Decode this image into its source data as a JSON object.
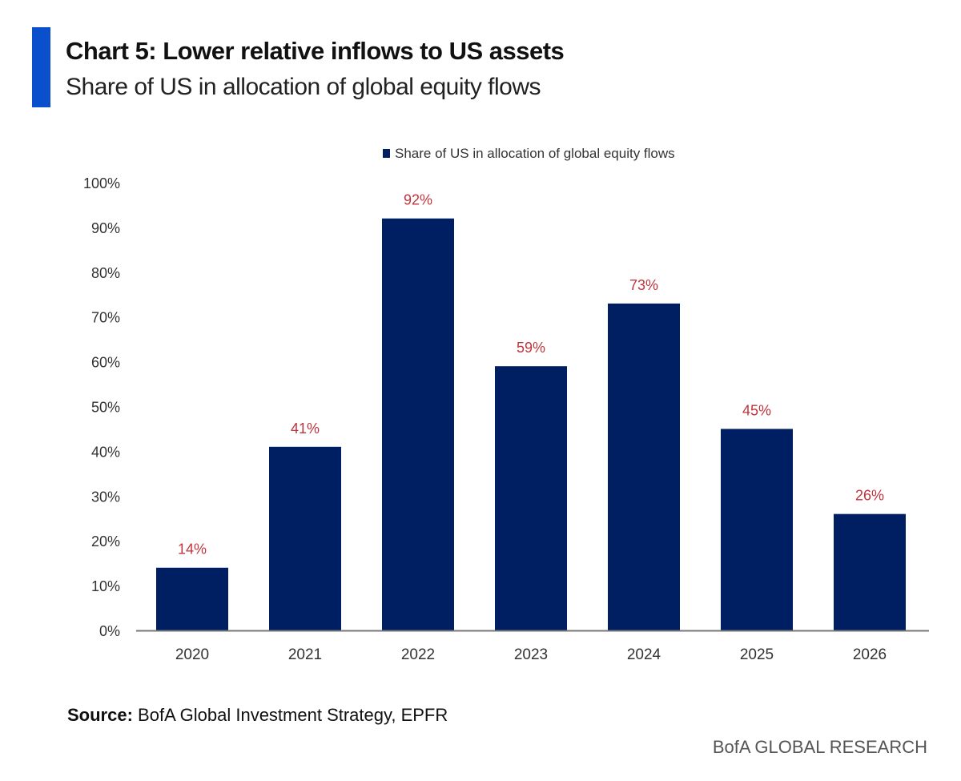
{
  "header": {
    "title": "Chart 5: Lower relative inflows to US assets",
    "subtitle": "Share of US in allocation of global equity flows"
  },
  "footer": {
    "source_label": "Source:",
    "source_text": "BofA Global Investment Strategy, EPFR",
    "brand": "BofA GLOBAL RESEARCH"
  },
  "chart_data": {
    "type": "bar",
    "title": "Chart 5: Lower relative inflows to US assets",
    "subtitle": "Share of US in allocation of global equity flows",
    "categories": [
      "2020",
      "2021",
      "2022",
      "2023",
      "2024",
      "2025",
      "2026"
    ],
    "series": [
      {
        "name": "Share of US in allocation of global equity flows",
        "values": [
          14,
          41,
          92,
          59,
          73,
          45,
          26
        ],
        "color": "#001f63"
      }
    ],
    "data_labels": [
      "14%",
      "41%",
      "92%",
      "59%",
      "73%",
      "45%",
      "26%"
    ],
    "data_label_color": "#c0343c",
    "ylim": [
      0,
      100
    ],
    "yticks": [
      "0%",
      "10%",
      "20%",
      "30%",
      "40%",
      "50%",
      "60%",
      "70%",
      "80%",
      "90%",
      "100%"
    ],
    "grid": false,
    "legend_position": "top"
  },
  "colors": {
    "accent": "#0a4fcc",
    "bar": "#001f63",
    "label": "#c0343c"
  }
}
